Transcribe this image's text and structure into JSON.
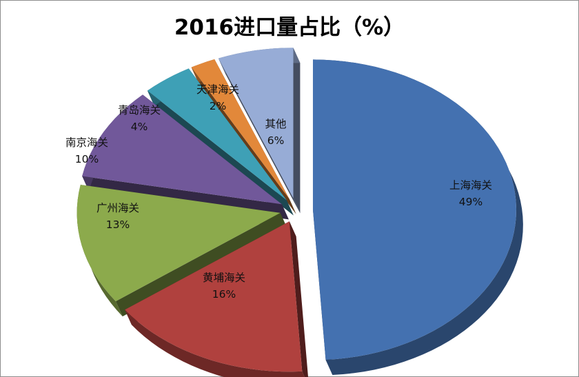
{
  "chart_data": {
    "type": "pie",
    "title": "2016进口量占比（%）",
    "slices": [
      {
        "name": "上海海关",
        "value": 49,
        "label": "49%",
        "color": "#4471b0"
      },
      {
        "name": "黄埔海关",
        "value": 16,
        "label": "16%",
        "color": "#b0413e"
      },
      {
        "name": "广州海关",
        "value": 13,
        "label": "13%",
        "color": "#8caa4c"
      },
      {
        "name": "南京海关",
        "value": 10,
        "label": "10%",
        "color": "#71589a"
      },
      {
        "name": "青岛海关",
        "value": 4,
        "label": "4%",
        "color": "#3ea0b6"
      },
      {
        "name": "天津海关",
        "value": 2,
        "label": "2%",
        "color": "#e2883a"
      },
      {
        "name": "其他",
        "value": 6,
        "label": "6%",
        "color": "#97acd6"
      }
    ],
    "style": "3d-exploded",
    "legend": "none"
  }
}
